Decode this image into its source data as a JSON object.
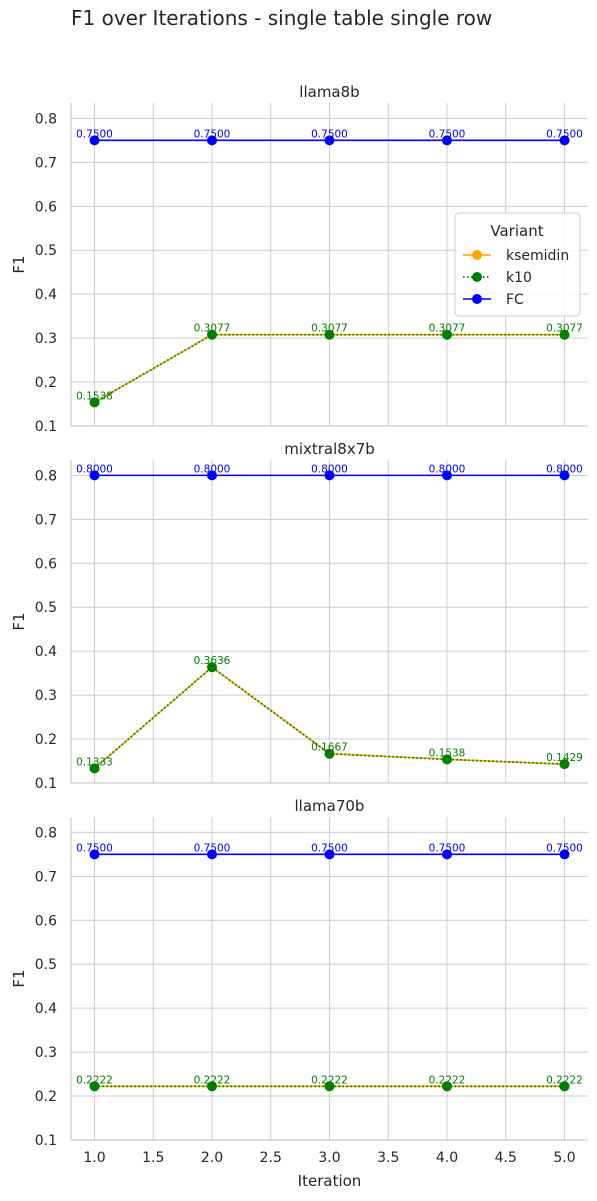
{
  "figure": {
    "title": "F1 over Iterations - single table single row"
  },
  "chart_data": [
    {
      "type": "line",
      "title": "llama8b",
      "xlabel": "",
      "ylabel": "F1",
      "xlim": [
        0.8,
        5.2
      ],
      "ylim": [
        0.1,
        0.835
      ],
      "xticks": [],
      "yticks": [
        "0.1",
        "0.2",
        "0.3",
        "0.4",
        "0.5",
        "0.6",
        "0.7",
        "0.8"
      ],
      "x": [
        1.0,
        2.0,
        3.0,
        4.0,
        5.0
      ],
      "series": [
        {
          "name": "ksemidin",
          "values": [
            0.1538,
            0.3077,
            0.3077,
            0.3077,
            0.3077
          ],
          "labels": []
        },
        {
          "name": "k10",
          "values": [
            0.1538,
            0.3077,
            0.3077,
            0.3077,
            0.3077
          ],
          "labels": [
            "0.1538",
            "0.3077",
            "0.3077",
            "0.3077",
            "0.3077"
          ]
        },
        {
          "name": "FC",
          "values": [
            0.75,
            0.75,
            0.75,
            0.75,
            0.75
          ],
          "labels": [
            "0.7500",
            "0.7500",
            "0.7500",
            "0.7500",
            "0.7500"
          ]
        }
      ],
      "legend": {
        "title": "Variant",
        "placement": "center-right"
      }
    },
    {
      "type": "line",
      "title": "mixtral8x7b",
      "xlabel": "",
      "ylabel": "F1",
      "xlim": [
        0.8,
        5.2
      ],
      "ylim": [
        0.1,
        0.835
      ],
      "xticks": [],
      "yticks": [
        "0.1",
        "0.2",
        "0.3",
        "0.4",
        "0.5",
        "0.6",
        "0.7",
        "0.8"
      ],
      "x": [
        1.0,
        2.0,
        3.0,
        4.0,
        5.0
      ],
      "series": [
        {
          "name": "ksemidin",
          "values": [
            0.1333,
            0.3636,
            0.1667,
            0.1538,
            0.1429
          ],
          "labels": []
        },
        {
          "name": "k10",
          "values": [
            0.1333,
            0.3636,
            0.1667,
            0.1538,
            0.1429
          ],
          "labels": [
            "0.1333",
            "0.3636",
            "0.1667",
            "0.1538",
            "0.1429"
          ]
        },
        {
          "name": "FC",
          "values": [
            0.8,
            0.8,
            0.8,
            0.8,
            0.8
          ],
          "labels": [
            "0.8000",
            "0.8000",
            "0.8000",
            "0.8000",
            "0.8000"
          ]
        }
      ]
    },
    {
      "type": "line",
      "title": "llama70b",
      "xlabel": "Iteration",
      "ylabel": "F1",
      "xlim": [
        0.8,
        5.2
      ],
      "ylim": [
        0.1,
        0.835
      ],
      "xticks": [
        "1.0",
        "1.5",
        "2.0",
        "2.5",
        "3.0",
        "3.5",
        "4.0",
        "4.5",
        "5.0"
      ],
      "yticks": [
        "0.1",
        "0.2",
        "0.3",
        "0.4",
        "0.5",
        "0.6",
        "0.7",
        "0.8"
      ],
      "x": [
        1.0,
        2.0,
        3.0,
        4.0,
        5.0
      ],
      "series": [
        {
          "name": "ksemidin",
          "values": [
            0.2222,
            0.2222,
            0.2222,
            0.2222,
            0.2222
          ],
          "labels": []
        },
        {
          "name": "k10",
          "values": [
            0.2222,
            0.2222,
            0.2222,
            0.2222,
            0.2222
          ],
          "labels": [
            "0.2222",
            "0.2222",
            "0.2222",
            "0.2222",
            "0.2222"
          ]
        },
        {
          "name": "FC",
          "values": [
            0.75,
            0.75,
            0.75,
            0.75,
            0.75
          ],
          "labels": [
            "0.7500",
            "0.7500",
            "0.7500",
            "0.7500",
            "0.7500"
          ]
        }
      ]
    }
  ],
  "grid": true,
  "colors": {
    "ksemidin": "#ffa500",
    "k10": "#008000",
    "FC": "#0000ff",
    "grid": "#cccccc",
    "text": "#262626"
  },
  "line_styles": {
    "ksemidin": "solid",
    "k10": "dotted",
    "FC": "solid"
  }
}
